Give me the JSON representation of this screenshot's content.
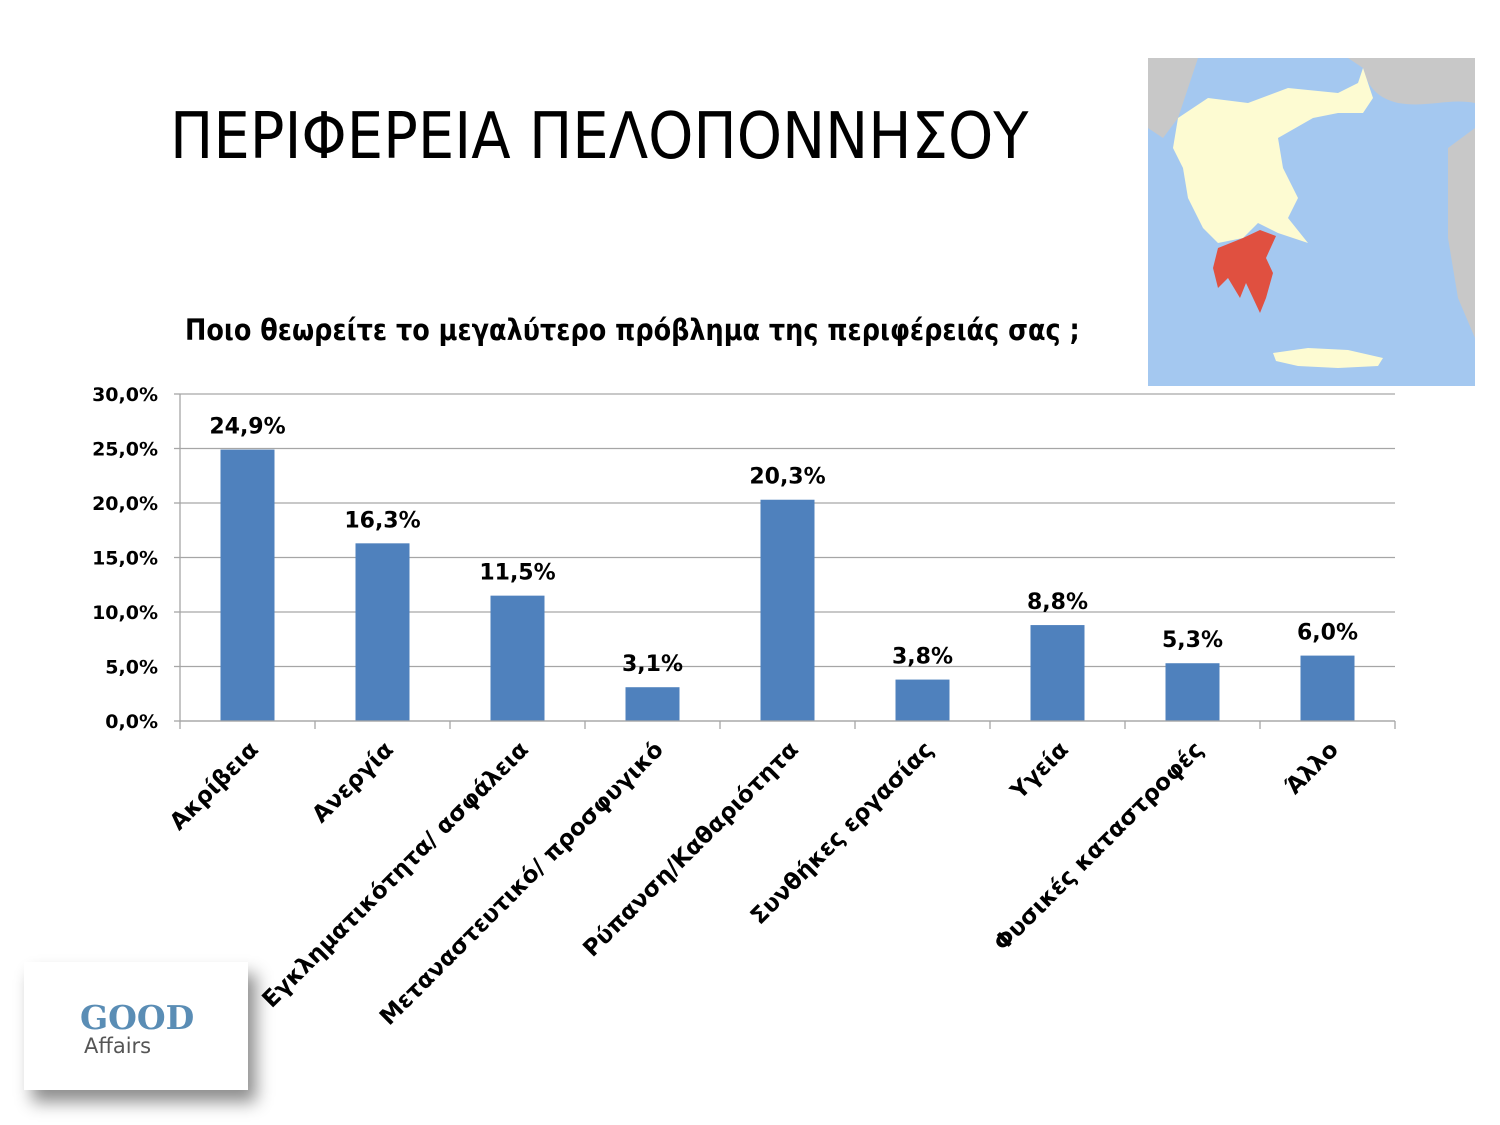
{
  "slide": {
    "title": "ΠΕΡΙΦΕΡΕΙΑ ΠΕΛΟΠΟΝΝΗΣΟΥ",
    "subtitle": "Ποιο θεωρείτε το μεγαλύτερο πρόβλημα της περιφέρειάς σας ;",
    "logo_text": [
      "GOOD",
      "Affairs"
    ]
  },
  "map": {
    "sea_color": "#a4c8f0",
    "land_color": "#c8c8c8",
    "country_color": "#fdfbd2",
    "highlight_color": "#e05040"
  },
  "chart_data": {
    "type": "bar",
    "title": "Ποιο θεωρείτε το μεγαλύτερο πρόβλημα της περιφέρειάς σας ;",
    "categories": [
      "Ακρίβεια",
      "Ανεργία",
      "Εγκληματικότητα/ ασφάλεια",
      "Μεταναστευτικό/ προσφυγικό",
      "Ρύπανση/Καθαριότητα",
      "Συνθήκες εργασίας",
      "Υγεία",
      "Φυσικές καταστροφές",
      "Άλλο"
    ],
    "values": [
      24.9,
      16.3,
      11.5,
      3.1,
      20.3,
      3.8,
      8.8,
      5.3,
      6.0
    ],
    "data_labels": [
      "24,9%",
      "16,3%",
      "11,5%",
      "3,1%",
      "20,3%",
      "3,8%",
      "8,8%",
      "5,3%",
      "6,0%"
    ],
    "ylim": [
      0,
      30
    ],
    "yticks": [
      0,
      5,
      10,
      15,
      20,
      25,
      30
    ],
    "ytick_labels": [
      "0,0%",
      "5,0%",
      "10,0%",
      "15,0%",
      "20,0%",
      "25,0%",
      "30,0%"
    ],
    "grid": true,
    "legend": "none",
    "bar_color": "#4f81bd",
    "xlabel": "",
    "ylabel": ""
  }
}
